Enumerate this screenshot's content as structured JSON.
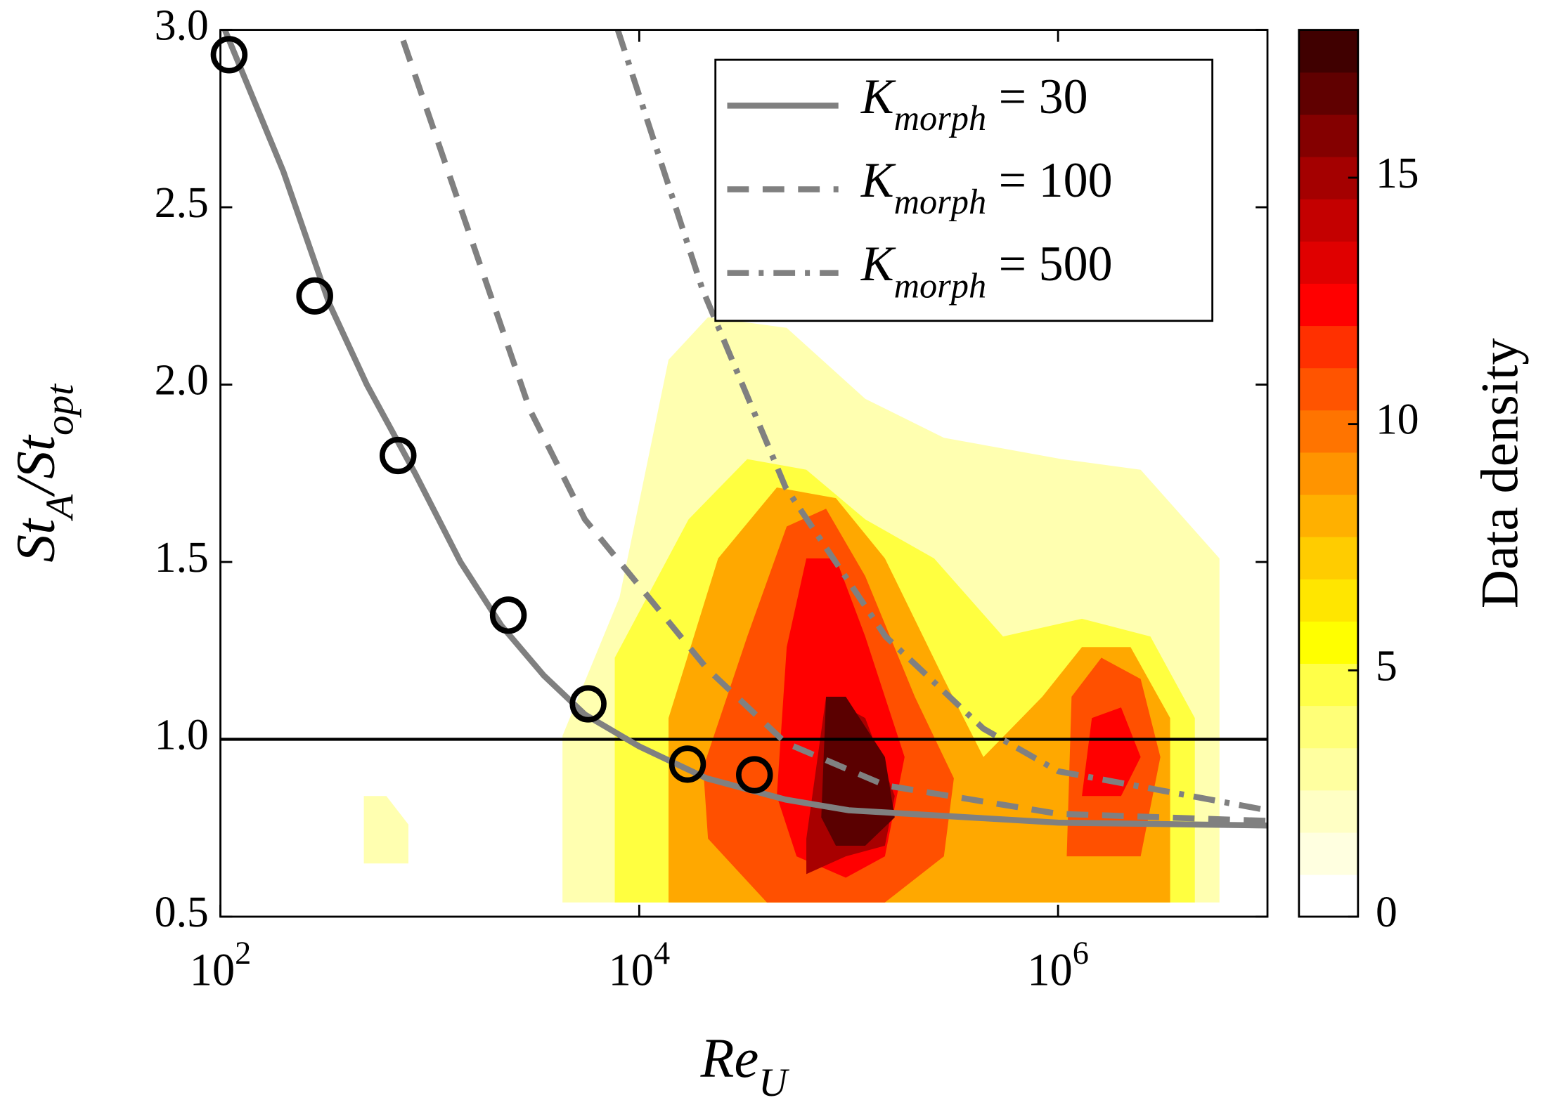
{
  "chart_data": {
    "type": "scatter",
    "x_label": "Re_U",
    "y_label": "St_A/St_opt",
    "colorbar_label": "Data density",
    "xscale": "log",
    "xlim": [
      100,
      10000000
    ],
    "xticks": [
      {
        "value": 100,
        "label": "10^2"
      },
      {
        "value": 10000,
        "label": "10^4"
      },
      {
        "value": 1000000,
        "label": "10^6"
      }
    ],
    "ylim": [
      0.5,
      3
    ],
    "yticks": [
      0.5,
      {
        "value": 1,
        "label": "1.0"
      },
      1.5,
      {
        "value": 2,
        "label": "2.0"
      },
      2.5,
      {
        "value": 3,
        "label": "3.0"
      }
    ],
    "clim": [
      0,
      18
    ],
    "cticks": [
      0,
      5,
      10,
      15
    ],
    "colormap": [
      "#ffffff",
      "#ffffe0",
      "#ffffc4",
      "#ffffa0",
      "#ffff78",
      "#ffff48",
      "#ffff00",
      "#ffe600",
      "#ffcc00",
      "#ffb000",
      "#ff9400",
      "#ff7400",
      "#ff5400",
      "#ff3000",
      "#ff0000",
      "#e00000",
      "#c40000",
      "#a40000",
      "#840000",
      "#600000",
      "#400000"
    ],
    "contours": [
      {
        "color": "#ffffb0",
        "x": [
          4300,
          4300,
          8050,
          13800,
          21300,
          50600,
          120000,
          285000,
          1040000,
          2480000,
          5900000,
          5900000
        ],
        "values": [
          0.54,
          1.01,
          1.4,
          2.07,
          2.19,
          2.16,
          1.96,
          1.85,
          1.79,
          1.76,
          1.51,
          0.54
        ]
      },
      {
        "color": "#ffffb0",
        "x": [
          484,
          484,
          620,
          790,
          790
        ],
        "values": [
          0.65,
          0.84,
          0.84,
          0.76,
          0.65
        ]
      },
      {
        "color": "#ffff40",
        "x": [
          7640,
          7640,
          17200,
          32800,
          62800,
          120000,
          256000,
          546000,
          1300000,
          2760000,
          4500000,
          4500000
        ],
        "values": [
          0.54,
          1.23,
          1.62,
          1.79,
          1.76,
          1.62,
          1.51,
          1.29,
          1.34,
          1.29,
          1.06,
          0.54
        ]
      },
      {
        "color": "#ffa800",
        "x": [
          13800,
          13800,
          23800,
          45400,
          86900,
          149000,
          285000,
          440000,
          841000,
          1300000,
          2220000,
          3430000,
          3430000
        ],
        "values": [
          0.54,
          1.06,
          1.51,
          1.71,
          1.68,
          1.51,
          1.17,
          0.95,
          1.12,
          1.26,
          1.26,
          1.06,
          0.54
        ]
      },
      {
        "color": "#ff5000",
        "x": [
          20200,
          32800,
          50600,
          78000,
          120000,
          207000,
          318000,
          285000,
          149000,
          40700,
          21300
        ],
        "values": [
          0.92,
          1.29,
          1.6,
          1.65,
          1.46,
          1.12,
          0.89,
          0.67,
          0.54,
          0.54,
          0.72
        ]
      },
      {
        "color": "#ff5000",
        "x": [
          1100000,
          1160000,
          1610000,
          2480000,
          3080000,
          2480000
        ],
        "values": [
          0.67,
          1.12,
          1.23,
          1.17,
          0.95,
          0.67
        ]
      },
      {
        "color": "#ff0000",
        "x": [
          45400,
          50600,
          62800,
          86900,
          120000,
          185000,
          149000,
          96900,
          56400
        ],
        "values": [
          0.84,
          1.26,
          1.51,
          1.51,
          1.29,
          0.95,
          0.67,
          0.61,
          0.67
        ]
      },
      {
        "color": "#ff0000",
        "x": [
          1300000,
          1450000,
          2000000,
          2480000,
          2000000
        ],
        "values": [
          0.84,
          1.06,
          1.09,
          0.95,
          0.84
        ]
      },
      {
        "color": "#a80000",
        "x": [
          62800,
          78000,
          120000,
          166000,
          149000,
          96900,
          62800
        ],
        "values": [
          0.72,
          1.12,
          1.06,
          0.84,
          0.7,
          0.67,
          0.62
        ]
      },
      {
        "color": "#5a0000",
        "x": [
          74000,
          78000,
          96900,
          149000,
          166000,
          120000,
          86900
        ],
        "values": [
          0.78,
          1.12,
          1.12,
          0.95,
          0.78,
          0.7,
          0.7
        ]
      }
    ],
    "series": [
      {
        "name": "K_morph = 30",
        "color": "#808080",
        "style": "solid",
        "x": [
          105,
          200,
          330,
          500,
          850,
          1400,
          2200,
          3500,
          5500,
          10000,
          21000,
          50000,
          100000,
          1000000,
          10000000
        ],
        "values": [
          3.0,
          2.6,
          2.23,
          2.0,
          1.75,
          1.5,
          1.32,
          1.18,
          1.07,
          0.98,
          0.89,
          0.83,
          0.8,
          0.765,
          0.757
        ]
      },
      {
        "name": "K_morph = 100",
        "color": "#808080",
        "style": "dashed",
        "x": [
          746,
          3000,
          5500,
          21000,
          50000,
          150000,
          1000000,
          10000000
        ],
        "values": [
          2.97,
          1.93,
          1.62,
          1.2,
          0.99,
          0.87,
          0.79,
          0.77
        ]
      },
      {
        "name": "K_morph = 500",
        "color": "#808080",
        "style": "dashdot",
        "x": [
          7900,
          20000,
          50000,
          150000,
          440000,
          1000000,
          10000000
        ],
        "values": [
          3.0,
          2.27,
          1.71,
          1.29,
          1.03,
          0.91,
          0.8
        ]
      }
    ],
    "points": {
      "color": "#000000",
      "x": [
        110,
        282,
        705,
        2370,
        5700,
        17000,
        35500
      ],
      "values": [
        2.93,
        2.25,
        1.8,
        1.35,
        1.1,
        0.93,
        0.9
      ]
    },
    "hlines": [
      1
    ],
    "legend": "upper right"
  }
}
